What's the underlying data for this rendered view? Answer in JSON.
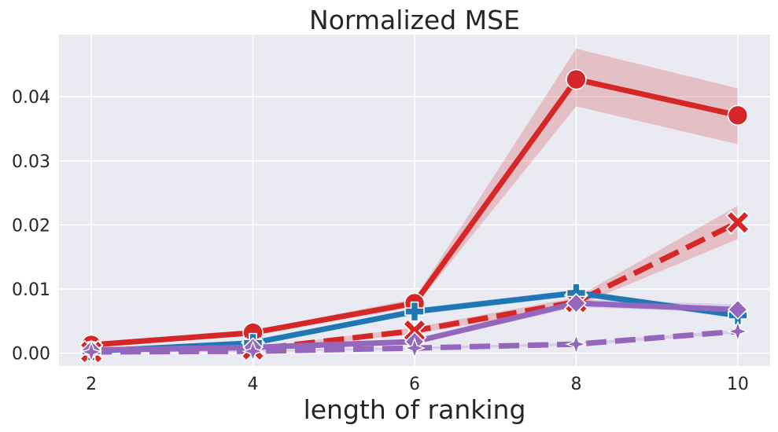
{
  "chart_data": {
    "type": "line",
    "title": "Normalized MSE",
    "xlabel": "length of ranking",
    "ylabel": "",
    "x": [
      2,
      4,
      6,
      8,
      10
    ],
    "xticks": [
      "2",
      "4",
      "6",
      "8",
      "10"
    ],
    "yticks": [
      "0.00",
      "0.01",
      "0.02",
      "0.03",
      "0.04"
    ],
    "xlim": [
      1.6,
      10.4
    ],
    "ylim": [
      -0.002,
      0.0497
    ],
    "grid": true,
    "series": [
      {
        "color": "#d62728",
        "dash": "solid",
        "marker": "circle",
        "values": [
          0.0013,
          0.0032,
          0.0078,
          0.0427,
          0.0371
        ],
        "band_low": [
          0.0011,
          0.0029,
          0.0072,
          0.0385,
          0.0326
        ],
        "band_high": [
          0.0015,
          0.0035,
          0.0085,
          0.0475,
          0.0413
        ]
      },
      {
        "color": "#d62728",
        "dash": "dashed",
        "marker": "x",
        "values": [
          0.0002,
          0.0006,
          0.0035,
          0.008,
          0.0204
        ],
        "band_low": [
          0.0001,
          0.0004,
          0.003,
          0.0073,
          0.0178
        ],
        "band_high": [
          0.0003,
          0.0008,
          0.004,
          0.0087,
          0.023
        ]
      },
      {
        "color": "#1f77b4",
        "dash": "solid",
        "marker": "plus",
        "values": [
          0.0003,
          0.0016,
          0.0065,
          0.0094,
          0.0059
        ],
        "band_low": [
          0.0002,
          0.0013,
          0.006,
          0.0089,
          0.0054
        ],
        "band_high": [
          0.0004,
          0.0019,
          0.007,
          0.0099,
          0.0064
        ]
      },
      {
        "color": "#9467bd",
        "dash": "solid",
        "marker": "diamond",
        "values": [
          0.0005,
          0.0009,
          0.0018,
          0.0078,
          0.0068
        ],
        "band_low": [
          0.0004,
          0.0007,
          0.0015,
          0.0072,
          0.0063
        ],
        "band_high": [
          0.0006,
          0.0011,
          0.0021,
          0.0084,
          0.0076
        ]
      },
      {
        "color": "#9467bd",
        "dash": "dashed",
        "marker": "star",
        "values": [
          0.0002,
          0.0003,
          0.0008,
          0.0014,
          0.0034
        ],
        "band_low": [
          0.0001,
          0.0002,
          0.0006,
          0.0012,
          0.0031
        ],
        "band_high": [
          0.0003,
          0.0004,
          0.001,
          0.0016,
          0.0037
        ]
      }
    ]
  }
}
